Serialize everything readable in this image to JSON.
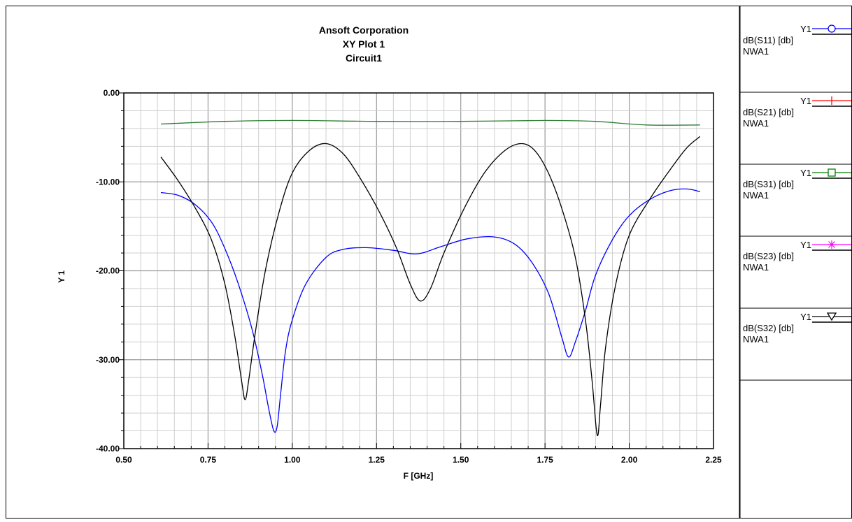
{
  "chart_data": {
    "type": "line",
    "title_lines": [
      "Ansoft Corporation",
      "XY Plot 1",
      "Circuit1"
    ],
    "xlabel": "F [GHz]",
    "ylabel": "Y 1",
    "xlim": [
      0.5,
      2.25
    ],
    "ylim": [
      -40,
      0
    ],
    "x_ticks": [
      0.5,
      0.75,
      1.0,
      1.25,
      1.5,
      1.75,
      2.0,
      2.25
    ],
    "x_tick_labels": [
      "0.50",
      "0.75",
      "1.00",
      "1.25",
      "1.50",
      "1.75",
      "2.00",
      "2.25"
    ],
    "y_ticks": [
      0,
      -10,
      -20,
      -30,
      -40
    ],
    "y_tick_labels": [
      "0.00",
      "-10.00",
      "-20.00",
      "-30.00",
      "-40.00"
    ],
    "grid": true,
    "legend_position": "right-panel",
    "legend": [
      {
        "axis": "Y1",
        "name": "dB(S11) [db]",
        "source": "NWA1",
        "color": "#0000ff",
        "marker": "circle"
      },
      {
        "axis": "Y1",
        "name": "dB(S21) [db]",
        "source": "NWA1",
        "color": "#ff0000",
        "marker": "plus"
      },
      {
        "axis": "Y1",
        "name": "dB(S31) [db]",
        "source": "NWA1",
        "color": "#008000",
        "marker": "square"
      },
      {
        "axis": "Y1",
        "name": "dB(S23) [db]",
        "source": "NWA1",
        "color": "#ff00ff",
        "marker": "star"
      },
      {
        "axis": "Y1",
        "name": "dB(S32) [db]",
        "source": "NWA1",
        "color": "#000000",
        "marker": "triangle-down"
      }
    ],
    "series": [
      {
        "name": "dB(S11) [db]",
        "color": "#0000ff",
        "x": [
          0.61,
          0.66,
          0.71,
          0.76,
          0.8,
          0.84,
          0.88,
          0.91,
          0.93,
          0.945,
          0.955,
          0.965,
          0.98,
          1.0,
          1.04,
          1.1,
          1.15,
          1.22,
          1.3,
          1.37,
          1.44,
          1.52,
          1.6,
          1.66,
          1.71,
          1.76,
          1.8,
          1.82,
          1.84,
          1.87,
          1.9,
          1.95,
          2.0,
          2.06,
          2.12,
          2.17,
          2.21
        ],
        "y": [
          -11.2,
          -11.5,
          -12.5,
          -14.5,
          -17.5,
          -21.5,
          -26.5,
          -31.5,
          -35.5,
          -38.0,
          -37.5,
          -34.0,
          -29.0,
          -25.5,
          -21.5,
          -18.5,
          -17.6,
          -17.4,
          -17.7,
          -18.1,
          -17.3,
          -16.4,
          -16.2,
          -17.0,
          -19.0,
          -22.5,
          -27.5,
          -29.7,
          -28.0,
          -24.5,
          -20.5,
          -16.5,
          -13.8,
          -12.0,
          -11.0,
          -10.8,
          -11.1
        ]
      },
      {
        "name": "dB(S31) [db]",
        "color": "#2e7d32",
        "x": [
          0.61,
          0.8,
          1.0,
          1.25,
          1.5,
          1.75,
          1.9,
          2.05,
          2.21
        ],
        "y": [
          -3.5,
          -3.2,
          -3.1,
          -3.2,
          -3.2,
          -3.1,
          -3.2,
          -3.6,
          -3.6
        ]
      },
      {
        "name": "dB(S32) [db]",
        "color": "#000000",
        "x": [
          0.61,
          0.66,
          0.71,
          0.76,
          0.8,
          0.83,
          0.85,
          0.86,
          0.87,
          0.89,
          0.92,
          0.96,
          1.0,
          1.05,
          1.1,
          1.15,
          1.2,
          1.26,
          1.31,
          1.35,
          1.38,
          1.41,
          1.45,
          1.51,
          1.57,
          1.63,
          1.68,
          1.72,
          1.76,
          1.8,
          1.84,
          1.87,
          1.89,
          1.905,
          1.915,
          1.93,
          1.96,
          2.0,
          2.06,
          2.12,
          2.17,
          2.21
        ],
        "y": [
          -7.2,
          -9.8,
          -12.8,
          -16.5,
          -21.5,
          -27.5,
          -32.5,
          -34.5,
          -32.5,
          -27.0,
          -20.0,
          -13.5,
          -9.0,
          -6.5,
          -5.7,
          -6.8,
          -9.5,
          -13.5,
          -17.5,
          -21.5,
          -23.4,
          -22.0,
          -18.0,
          -13.0,
          -9.0,
          -6.5,
          -5.7,
          -6.5,
          -9.0,
          -13.0,
          -18.5,
          -25.5,
          -32.5,
          -38.5,
          -35.0,
          -28.5,
          -21.5,
          -16.0,
          -12.0,
          -8.7,
          -6.2,
          -4.9
        ]
      }
    ]
  }
}
